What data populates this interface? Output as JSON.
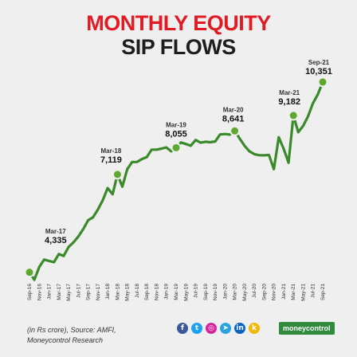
{
  "title_line1": "MONTHLY EQUITY",
  "title_line2": "SIP FLOWS",
  "footer": {
    "line1": "(in Rs crore), Source: AMFI,",
    "line2": "Moneycontrol Research",
    "brand": "moneycontrol"
  },
  "social_icons": [
    {
      "name": "facebook-icon",
      "glyph": "f",
      "color": "#3b5998"
    },
    {
      "name": "twitter-icon",
      "glyph": "t",
      "color": "#1da1f2"
    },
    {
      "name": "instagram-icon",
      "glyph": "◎",
      "color": "#d6249f"
    },
    {
      "name": "telegram-icon",
      "glyph": "➤",
      "color": "#2aa3df"
    },
    {
      "name": "linkedin-icon",
      "glyph": "in",
      "color": "#0a66c2"
    },
    {
      "name": "koo-icon",
      "glyph": "k",
      "color": "#f5b70a"
    }
  ],
  "colors": {
    "line": "#3a8a2c",
    "marker": "#5ea82f",
    "title_accent": "#e01b24"
  },
  "chart_data": {
    "type": "line",
    "title": "MONTHLY EQUITY SIP FLOWS",
    "xlabel": "",
    "ylabel": "",
    "ylim": [
      3800,
      10600
    ],
    "grid": false,
    "x": [
      "Sep-16",
      "Oct-16",
      "Nov-16",
      "Dec-16",
      "Jan-17",
      "Feb-17",
      "Mar-17",
      "Apr-17",
      "May-17",
      "Jun-17",
      "Jul-17",
      "Aug-17",
      "Sep-17",
      "Oct-17",
      "Nov-17",
      "Dec-17",
      "Jan-18",
      "Feb-18",
      "Mar-18",
      "Apr-18",
      "May-18",
      "Jun-18",
      "Jul-18",
      "Aug-18",
      "Sep-18",
      "Oct-18",
      "Nov-18",
      "Dec-18",
      "Jan-19",
      "Feb-19",
      "Mar-19",
      "Apr-19",
      "May-19",
      "Jun-19",
      "Jul-19",
      "Aug-19",
      "Sep-19",
      "Oct-19",
      "Nov-19",
      "Dec-19",
      "Jan-20",
      "Feb-20",
      "Mar-20",
      "Apr-20",
      "May-20",
      "Jun-20",
      "Jul-20",
      "Aug-20",
      "Sep-20",
      "Oct-20",
      "Nov-20",
      "Dec-20",
      "Jan-21",
      "Feb-21",
      "Mar-21",
      "Apr-21",
      "May-21",
      "Jun-21",
      "Jul-21",
      "Aug-21",
      "Sep-21"
    ],
    "tick_labels": [
      "Sep-16",
      "Nov-16",
      "Jan-17",
      "Mar-17",
      "May-17",
      "Jul-17",
      "Sep-17",
      "Nov-17",
      "Jan-18",
      "Mar-18",
      "May-18",
      "Jul-18",
      "Sep-18",
      "Nov-18",
      "Jan-19",
      "Mar-19",
      "May-19",
      "Jul-19",
      "Sep-19",
      "Nov-19",
      "Jan-20",
      "Mar-20",
      "May-20",
      "Jul-20",
      "Sep-20",
      "Nov-20",
      "Jan-21",
      "Mar-21",
      "May-21",
      "Jul-21",
      "Sep-21"
    ],
    "values": [
      3698,
      3434,
      3884,
      4140,
      4095,
      4050,
      4335,
      4269,
      4584,
      4744,
      4947,
      5206,
      5516,
      5621,
      5893,
      6222,
      6644,
      6425,
      7119,
      6690,
      7304,
      7554,
      7554,
      7658,
      7727,
      7985,
      7985,
      8022,
      8064,
      7928,
      8055,
      8238,
      8183,
      8122,
      8324,
      8231,
      8263,
      8245,
      8273,
      8518,
      8532,
      8513,
      8641,
      8376,
      8123,
      7927,
      7831,
      7792,
      7788,
      7800,
      7302,
      8418,
      8023,
      7528,
      9182,
      8596,
      8819,
      9156,
      9609,
      9923,
      10351
    ],
    "annotations": [
      {
        "x": "Mar-17",
        "label": "Mar-17",
        "value_label": "4,335"
      },
      {
        "x": "Mar-18",
        "label": "Mar-18",
        "value_label": "7,119"
      },
      {
        "x": "Mar-19",
        "label": "Mar-19",
        "value_label": "8,055"
      },
      {
        "x": "Mar-20",
        "label": "Mar-20",
        "value_label": "8,641"
      },
      {
        "x": "Mar-21",
        "label": "Mar-21",
        "value_label": "9,182"
      },
      {
        "x": "Sep-21",
        "label": "Sep-21",
        "value_label": "10,351"
      }
    ],
    "markers": [
      "Sep-16",
      "Mar-18",
      "Mar-19",
      "Mar-20",
      "Mar-21",
      "Sep-21"
    ]
  }
}
